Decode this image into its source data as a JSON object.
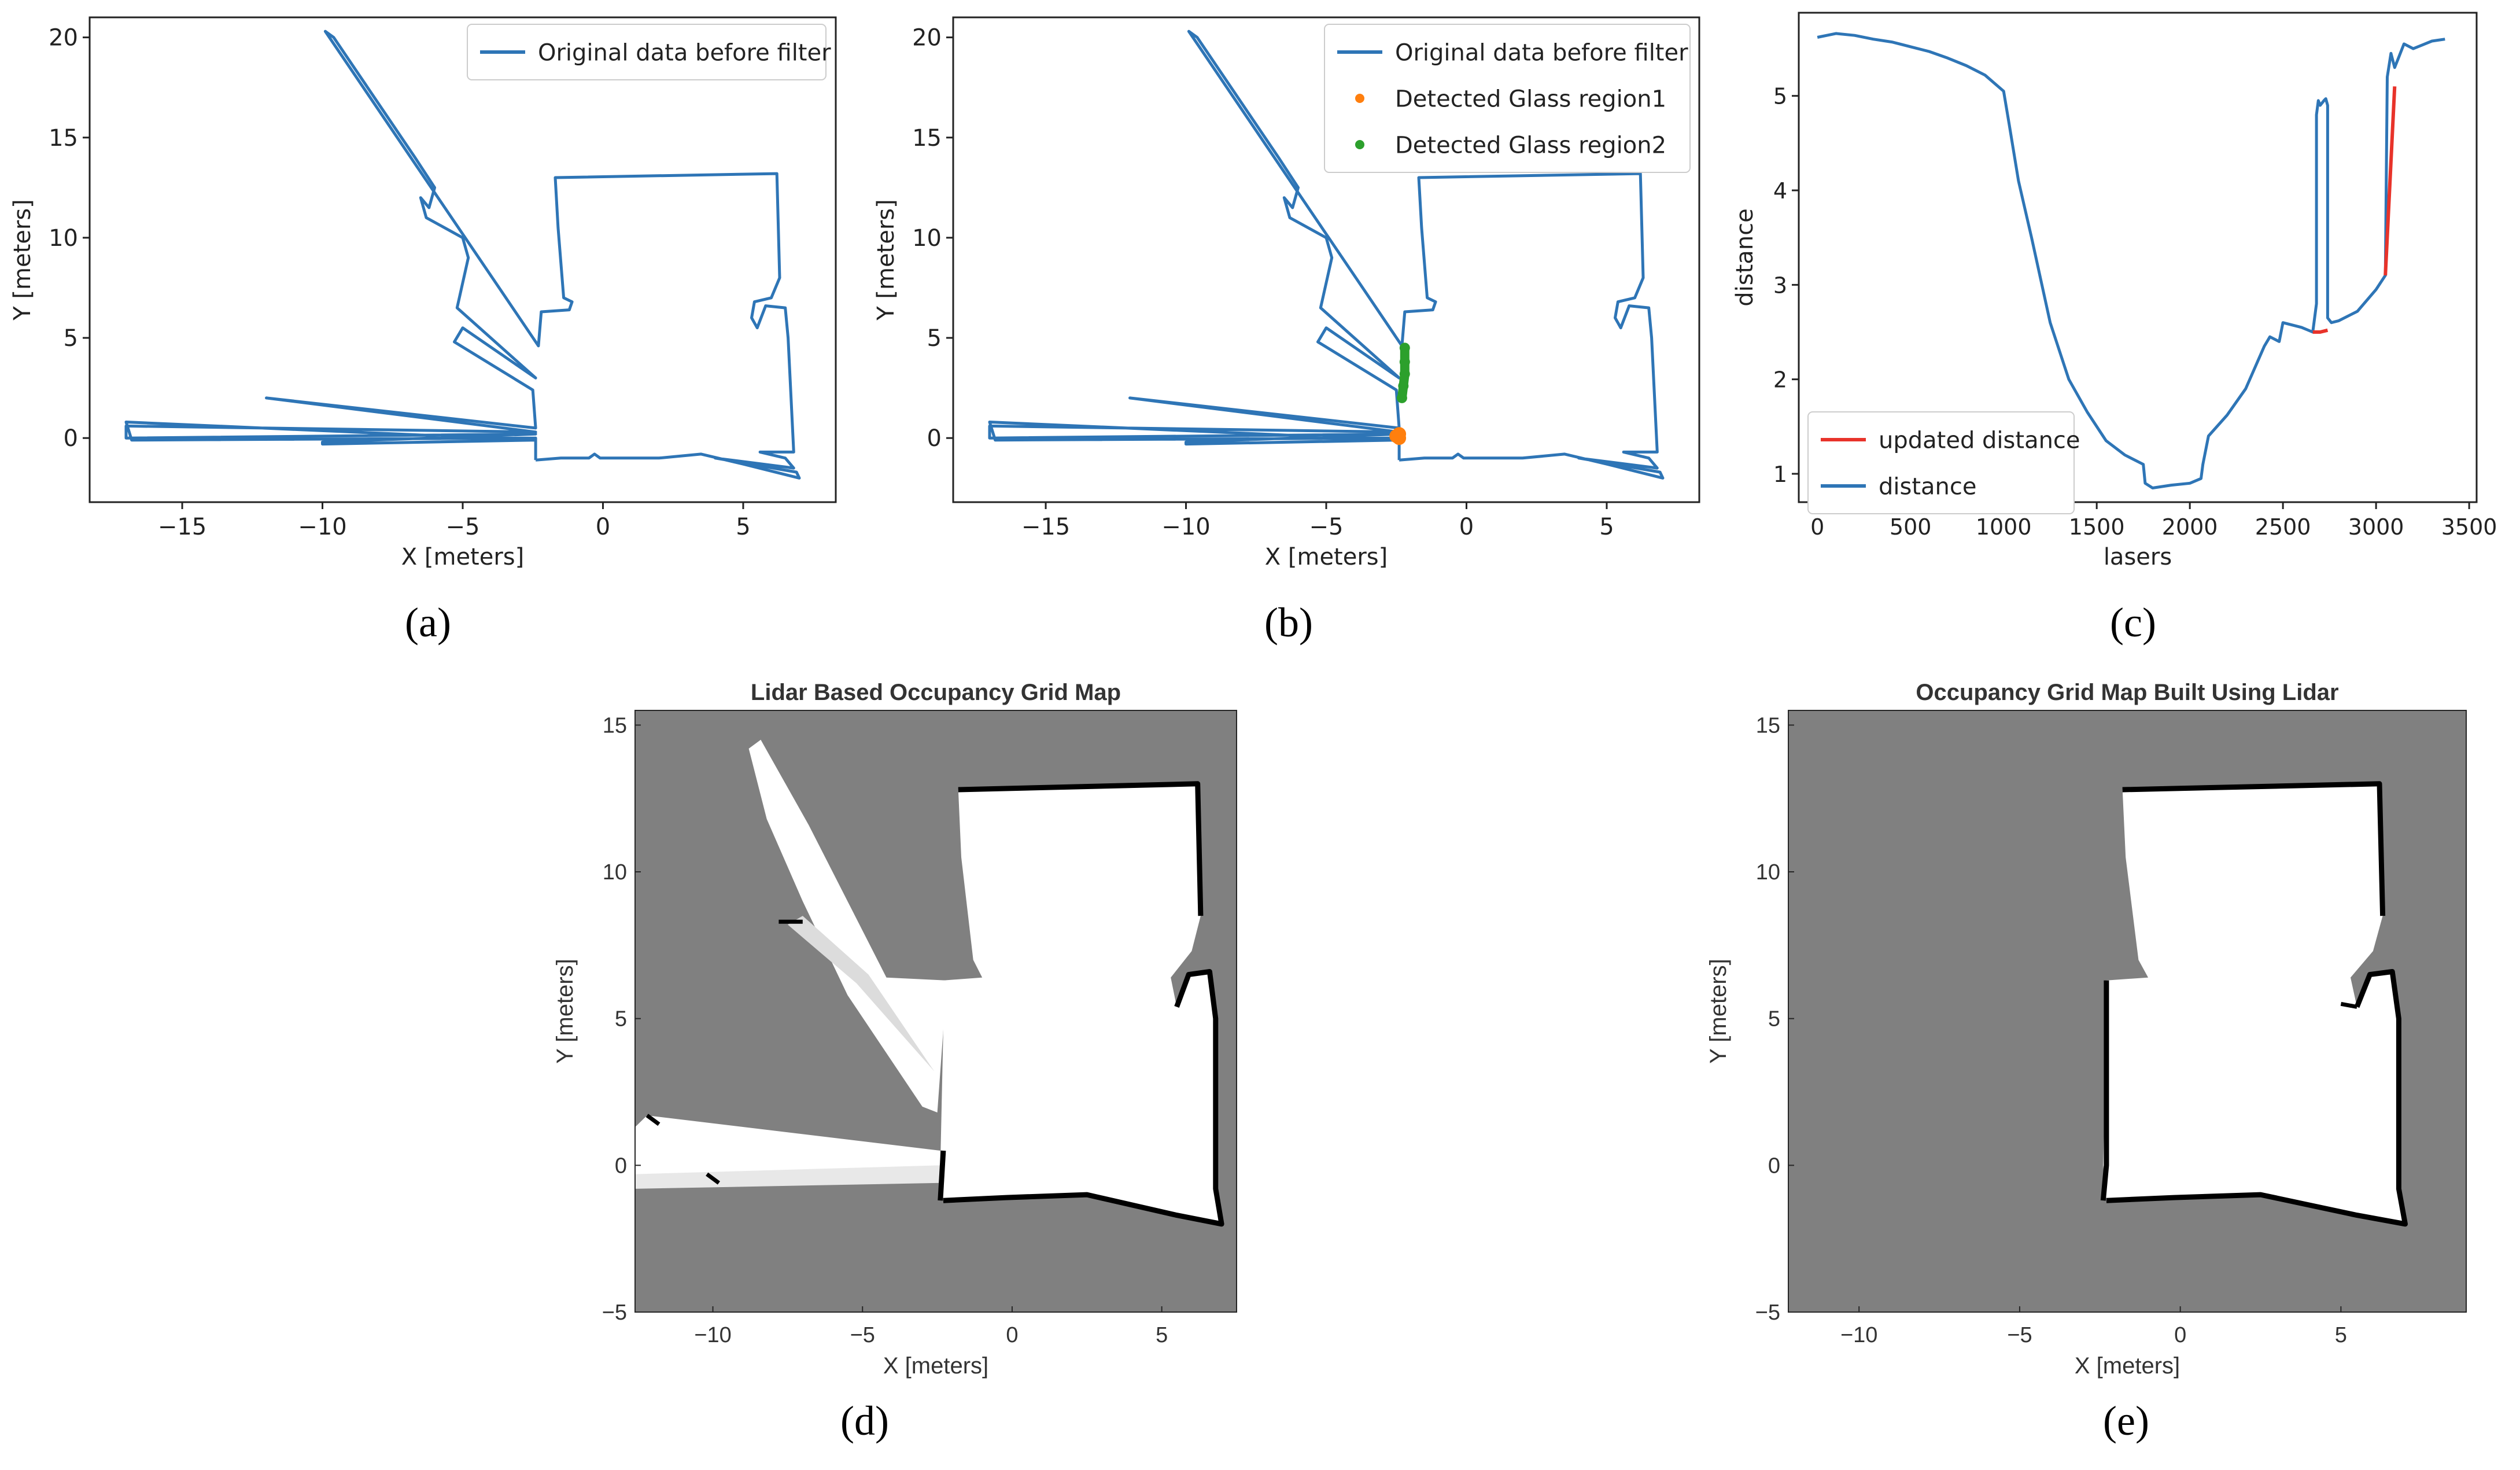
{
  "colors": {
    "line_blue": "#2e75b6",
    "glass1": "#ff7f0e",
    "glass2": "#2ca02c",
    "updated_red": "#e8332a",
    "unknown_gray": "#808080",
    "free_white": "#ffffff",
    "occupied_black": "#000000"
  },
  "chart_data": [
    {
      "panel": "a",
      "caption": "(a)",
      "type": "line",
      "xlabel": "X [meters]",
      "ylabel": "Y [meters]",
      "xlim": [
        -18.3,
        8.3
      ],
      "ylim": [
        -3.2,
        21.0
      ],
      "xticks": [
        -15,
        -10,
        -5,
        0,
        5
      ],
      "yticks": [
        0,
        5,
        10,
        15,
        20
      ],
      "legend": {
        "position": "top-right",
        "entries": [
          "Original data before filter"
        ]
      },
      "series": [
        {
          "name": "Original data before filter",
          "points": [
            [
              -2.4,
              -1.1
            ],
            [
              -1.5,
              -1.0
            ],
            [
              -0.5,
              -1.0
            ],
            [
              -0.3,
              -0.8
            ],
            [
              -0.1,
              -1.0
            ],
            [
              2.0,
              -1.0
            ],
            [
              3.5,
              -0.8
            ],
            [
              5.0,
              -1.3
            ],
            [
              7.0,
              -2.0
            ],
            [
              6.9,
              -1.7
            ],
            [
              4.0,
              -1.0
            ],
            [
              6.8,
              -1.5
            ],
            [
              6.5,
              -1.0
            ],
            [
              5.6,
              -0.7
            ],
            [
              6.8,
              -0.7
            ],
            [
              6.6,
              5.0
            ],
            [
              6.5,
              6.5
            ],
            [
              5.8,
              6.6
            ],
            [
              5.5,
              5.5
            ],
            [
              5.3,
              6.0
            ],
            [
              5.4,
              6.8
            ],
            [
              6.0,
              7.0
            ],
            [
              6.3,
              8.0
            ],
            [
              6.2,
              13.2
            ],
            [
              -1.7,
              13.0
            ],
            [
              -1.6,
              10.5
            ],
            [
              -1.4,
              7.0
            ],
            [
              -1.1,
              6.8
            ],
            [
              -1.2,
              6.4
            ],
            [
              -2.2,
              6.3
            ],
            [
              -2.3,
              4.6
            ],
            [
              -3.7,
              7.5
            ],
            [
              -9.9,
              20.3
            ],
            [
              -9.6,
              20.0
            ],
            [
              -6.7,
              14.0
            ],
            [
              -6.0,
              12.5
            ],
            [
              -6.2,
              11.5
            ],
            [
              -6.5,
              12.0
            ],
            [
              -6.3,
              11.0
            ],
            [
              -5.0,
              10.0
            ],
            [
              -4.8,
              9.0
            ],
            [
              -5.2,
              6.5
            ],
            [
              -2.4,
              3.0
            ],
            [
              -5.0,
              5.5
            ],
            [
              -5.3,
              4.8
            ],
            [
              -2.5,
              2.4
            ],
            [
              -2.4,
              0.5
            ],
            [
              -12.0,
              2.0
            ],
            [
              -2.4,
              0.3
            ],
            [
              -17.0,
              0.6
            ],
            [
              -17.0,
              0.0
            ],
            [
              -2.4,
              0.2
            ],
            [
              -10.0,
              -0.2
            ],
            [
              -10.0,
              -0.3
            ],
            [
              -2.4,
              -0.1
            ],
            [
              -17.0,
              0.8
            ],
            [
              -16.8,
              -0.1
            ],
            [
              -2.4,
              0.0
            ],
            [
              -2.4,
              -1.1
            ]
          ]
        }
      ]
    },
    {
      "panel": "b",
      "caption": "(b)",
      "type": "line",
      "xlabel": "X [meters]",
      "ylabel": "Y [meters]",
      "xlim": [
        -18.3,
        8.3
      ],
      "ylim": [
        -3.2,
        21.0
      ],
      "xticks": [
        -15,
        -10,
        -5,
        0,
        5
      ],
      "yticks": [
        0,
        5,
        10,
        15,
        20
      ],
      "legend": {
        "position": "top-right",
        "entries": [
          "Original data before filter",
          "Detected Glass region1",
          "Detected Glass region2"
        ]
      },
      "series": [
        {
          "name": "Original data before filter",
          "ref": "same as panel a"
        },
        {
          "name": "Detected Glass region1",
          "points": [
            [
              -2.4,
              0.0
            ],
            [
              -2.4,
              0.2
            ],
            [
              -2.5,
              0.1
            ]
          ]
        },
        {
          "name": "Detected Glass region2",
          "points": [
            [
              -2.3,
              2.0
            ],
            [
              -2.25,
              2.6
            ],
            [
              -2.2,
              3.2
            ],
            [
              -2.2,
              3.8
            ],
            [
              -2.2,
              4.5
            ]
          ]
        }
      ]
    },
    {
      "panel": "c",
      "caption": "(c)",
      "type": "line",
      "xlabel": "lasers",
      "ylabel": "distance",
      "xlim": [
        -100,
        3540
      ],
      "ylim": [
        0.7,
        5.88
      ],
      "xticks": [
        0,
        500,
        1000,
        1500,
        2000,
        2500,
        3000,
        3500
      ],
      "yticks": [
        1,
        2,
        3,
        4,
        5
      ],
      "legend": {
        "position": "bottom-left",
        "entries": [
          "updated distance",
          "distance"
        ]
      },
      "series": [
        {
          "name": "distance",
          "points": [
            [
              0,
              5.62
            ],
            [
              100,
              5.66
            ],
            [
              200,
              5.64
            ],
            [
              300,
              5.6
            ],
            [
              400,
              5.57
            ],
            [
              500,
              5.52
            ],
            [
              600,
              5.47
            ],
            [
              700,
              5.4
            ],
            [
              800,
              5.32
            ],
            [
              900,
              5.22
            ],
            [
              1000,
              5.05
            ],
            [
              1030,
              4.7
            ],
            [
              1080,
              4.1
            ],
            [
              1150,
              3.5
            ],
            [
              1250,
              2.6
            ],
            [
              1350,
              2.0
            ],
            [
              1450,
              1.65
            ],
            [
              1550,
              1.35
            ],
            [
              1650,
              1.2
            ],
            [
              1750,
              1.1
            ],
            [
              1760,
              0.9
            ],
            [
              1800,
              0.85
            ],
            [
              1900,
              0.88
            ],
            [
              2000,
              0.9
            ],
            [
              2060,
              0.95
            ],
            [
              2070,
              1.1
            ],
            [
              2100,
              1.4
            ],
            [
              2200,
              1.62
            ],
            [
              2300,
              1.9
            ],
            [
              2400,
              2.35
            ],
            [
              2430,
              2.45
            ],
            [
              2480,
              2.4
            ],
            [
              2500,
              2.6
            ],
            [
              2600,
              2.55
            ],
            [
              2660,
              2.5
            ],
            [
              2680,
              2.8
            ],
            [
              2680,
              4.8
            ],
            [
              2690,
              4.95
            ],
            [
              2700,
              4.9
            ],
            [
              2720,
              4.95
            ],
            [
              2730,
              4.97
            ],
            [
              2740,
              4.9
            ],
            [
              2740,
              2.65
            ],
            [
              2760,
              2.6
            ],
            [
              2800,
              2.62
            ],
            [
              2900,
              2.72
            ],
            [
              3000,
              2.95
            ],
            [
              3050,
              3.1
            ],
            [
              3060,
              5.2
            ],
            [
              3080,
              5.45
            ],
            [
              3100,
              5.3
            ],
            [
              3120,
              5.4
            ],
            [
              3150,
              5.55
            ],
            [
              3200,
              5.5
            ],
            [
              3300,
              5.58
            ],
            [
              3370,
              5.6
            ]
          ]
        },
        {
          "name": "updated distance",
          "segments": [
            [
              [
                2660,
                2.5
              ],
              [
                2700,
                2.5
              ],
              [
                2740,
                2.52
              ]
            ],
            [
              [
                3050,
                3.1
              ],
              [
                3100,
                5.1
              ]
            ]
          ]
        }
      ]
    },
    {
      "panel": "d",
      "caption": "(d)",
      "type": "heatmap",
      "title": "Lidar Based Occupancy Grid Map",
      "xlabel": "X [meters]",
      "ylabel": "Y [meters]",
      "xlim": [
        -12.6,
        7.5
      ],
      "ylim": [
        -5,
        15.5
      ],
      "xticks": [
        -10,
        -5,
        0,
        5
      ],
      "yticks": [
        -5,
        0,
        5,
        10,
        15
      ],
      "legend": null
    },
    {
      "panel": "e",
      "caption": "(e)",
      "type": "heatmap",
      "title": "Occupancy Grid Map Built Using Lidar",
      "xlabel": "X [meters]",
      "ylabel": "Y [meters]",
      "xlim": [
        -12.2,
        8.9
      ],
      "ylim": [
        -5,
        15.5
      ],
      "xticks": [
        -10,
        -5,
        0,
        5
      ],
      "yticks": [
        -5,
        0,
        5,
        10,
        15
      ],
      "legend": null
    }
  ]
}
